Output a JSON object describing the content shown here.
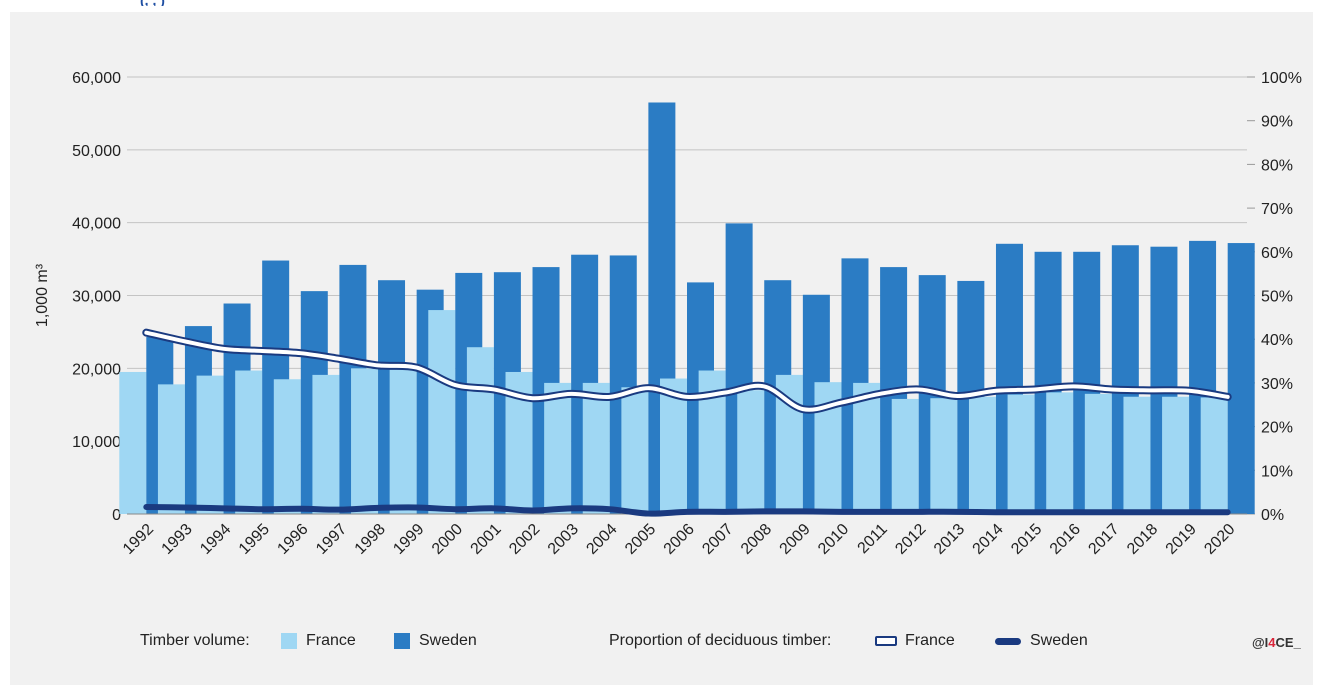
{
  "header": {
    "fragment": "(,  ,  )"
  },
  "chart_data": {
    "type": "bar",
    "categories": [
      "1992",
      "1993",
      "1994",
      "1995",
      "1996",
      "1997",
      "1998",
      "1999",
      "2000",
      "2001",
      "2002",
      "2003",
      "2004",
      "2005",
      "2006",
      "2007",
      "2008",
      "2009",
      "2010",
      "2011",
      "2012",
      "2013",
      "2014",
      "2015",
      "2016",
      "2017",
      "2018",
      "2019",
      "2020"
    ],
    "ylabel": "1,000 m³",
    "ylim": [
      0,
      60000
    ],
    "yticks": [
      "0",
      "10,000",
      "20,000",
      "30,000",
      "40,000",
      "50,000",
      "60,000"
    ],
    "y2lim": [
      0,
      100
    ],
    "y2ticks": [
      "0%",
      "10%",
      "20%",
      "30%",
      "40%",
      "50%",
      "60%",
      "70%",
      "80%",
      "90%",
      "100%"
    ],
    "grid": true,
    "bar_series": [
      {
        "name": "France",
        "color": "#9fd7f3",
        "values": [
          19500,
          17800,
          19000,
          19700,
          18500,
          19100,
          20000,
          20100,
          28000,
          22900,
          19500,
          18000,
          18000,
          17400,
          18600,
          19700,
          17000,
          19100,
          18100,
          18000,
          15800,
          15900,
          16100,
          16400,
          16700,
          16500,
          16100,
          16100,
          16000
        ]
      },
      {
        "name": "Sweden",
        "color": "#2b7cc4",
        "values": [
          24300,
          25800,
          28900,
          34800,
          30600,
          34200,
          32100,
          30800,
          33100,
          33200,
          33900,
          35600,
          35500,
          56500,
          31800,
          39900,
          32100,
          30100,
          35100,
          33900,
          32800,
          32000,
          37100,
          36000,
          36000,
          36900,
          36700,
          37500,
          37200
        ]
      }
    ],
    "line_series": [
      {
        "name": "France",
        "style": "hollow",
        "values": [
          41.5,
          39.5,
          37.8,
          37.3,
          36.8,
          35.5,
          34.0,
          33.5,
          29.5,
          28.5,
          26.5,
          27.5,
          26.8,
          28.8,
          26.8,
          27.8,
          29.2,
          24.0,
          25.5,
          27.5,
          28.5,
          27.0,
          28.2,
          28.5,
          29.2,
          28.5,
          28.3,
          28.2,
          26.8
        ]
      },
      {
        "name": "Sweden",
        "style": "solid",
        "values": [
          1.6,
          1.5,
          1.3,
          1.1,
          1.2,
          1.0,
          1.4,
          1.5,
          1.1,
          1.3,
          0.8,
          1.3,
          1.1,
          0.1,
          0.5,
          0.5,
          0.6,
          0.6,
          0.5,
          0.5,
          0.5,
          0.5,
          0.4,
          0.4,
          0.4,
          0.4,
          0.4,
          0.4,
          0.4
        ]
      }
    ]
  },
  "legend": {
    "volume_label": "Timber volume:",
    "volume_france": "France",
    "volume_sweden": "Sweden",
    "proportion_label": "Proportion of deciduous timber:",
    "proportion_france": "France",
    "proportion_sweden": "Sweden"
  },
  "credit": {
    "prefix": "@I",
    "four": "4",
    "suffix": "CE_"
  },
  "colors": {
    "france_bar": "#9fd7f3",
    "sweden_bar": "#2b7cc4",
    "line": "#1a3a80",
    "background": "#f1f1f1"
  }
}
